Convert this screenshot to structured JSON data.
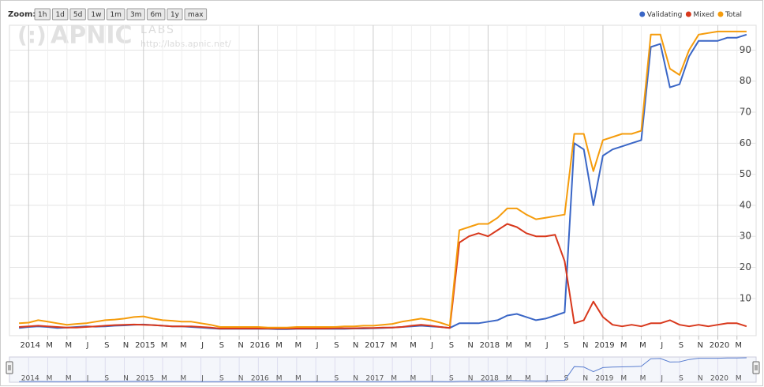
{
  "zoom": {
    "label": "Zoom:",
    "buttons": [
      "1h",
      "1d",
      "5d",
      "1w",
      "1m",
      "3m",
      "6m",
      "1y",
      "max"
    ]
  },
  "watermark": {
    "logo": "APNIC",
    "labs": "LABS",
    "url": "http://labs.apnic.net/"
  },
  "chart_data": {
    "type": "line",
    "x": [
      "2013-12",
      "2014-01",
      "2014-02",
      "2014-03",
      "2014-04",
      "2014-05",
      "2014-06",
      "2014-07",
      "2014-08",
      "2014-09",
      "2014-10",
      "2014-11",
      "2014-12",
      "2015-01",
      "2015-02",
      "2015-03",
      "2015-04",
      "2015-05",
      "2015-06",
      "2015-07",
      "2015-08",
      "2015-09",
      "2015-10",
      "2015-11",
      "2015-12",
      "2016-01",
      "2016-02",
      "2016-03",
      "2016-04",
      "2016-05",
      "2016-06",
      "2016-07",
      "2016-08",
      "2016-09",
      "2016-10",
      "2016-11",
      "2016-12",
      "2017-01",
      "2017-02",
      "2017-03",
      "2017-04",
      "2017-05",
      "2017-06",
      "2017-07",
      "2017-08",
      "2017-09",
      "2017-10",
      "2017-11",
      "2017-12",
      "2018-01",
      "2018-02",
      "2018-03",
      "2018-04",
      "2018-05",
      "2018-06",
      "2018-07",
      "2018-08",
      "2018-09",
      "2018-10",
      "2018-11",
      "2018-12",
      "2019-01",
      "2019-02",
      "2019-03",
      "2019-04",
      "2019-05",
      "2019-06",
      "2019-07",
      "2019-08",
      "2019-09",
      "2019-10",
      "2019-11",
      "2019-12",
      "2020-01",
      "2020-02",
      "2020-03",
      "2020-04"
    ],
    "series": [
      {
        "name": "Validating",
        "color": "#3a66c6",
        "values": [
          0.5,
          0.8,
          1,
          0.8,
          0.5,
          0.6,
          0.8,
          1,
          0.9,
          1,
          1.2,
          1.3,
          1.5,
          1.6,
          1.4,
          1.2,
          1,
          1,
          0.8,
          0.6,
          0.4,
          0.2,
          0.2,
          0.2,
          0.2,
          0.2,
          0.2,
          0.1,
          0.1,
          0.2,
          0.2,
          0.2,
          0.2,
          0.2,
          0.2,
          0.3,
          0.3,
          0.4,
          0.5,
          0.6,
          0.8,
          1,
          1.2,
          1,
          0.8,
          0.5,
          2,
          2,
          2,
          2.5,
          3,
          4.5,
          5,
          4,
          3,
          3.5,
          4.5,
          5.5,
          60,
          58,
          40,
          56,
          58,
          59,
          60,
          61,
          91,
          92,
          78,
          79,
          88,
          93,
          93,
          93,
          94,
          94,
          95
        ]
      },
      {
        "name": "Mixed",
        "color": "#d8381c",
        "values": [
          0.8,
          1,
          1.2,
          1,
          0.8,
          0.6,
          0.6,
          0.8,
          1,
          1.2,
          1.4,
          1.5,
          1.6,
          1.5,
          1.4,
          1.2,
          1,
          1,
          1,
          0.8,
          0.6,
          0.3,
          0.3,
          0.3,
          0.3,
          0.3,
          0.3,
          0.3,
          0.3,
          0.3,
          0.3,
          0.3,
          0.3,
          0.4,
          0.4,
          0.4,
          0.5,
          0.5,
          0.6,
          0.6,
          0.8,
          1.2,
          1.5,
          1.2,
          0.8,
          0.5,
          28,
          30,
          31,
          30,
          32,
          34,
          33,
          31,
          30,
          30,
          30.5,
          22,
          2,
          3,
          9,
          4,
          1.5,
          1,
          1.5,
          1,
          2,
          2,
          3,
          1.5,
          1,
          1.5,
          1,
          1.5,
          2,
          2,
          1
        ]
      },
      {
        "name": "Total",
        "color": "#f59c0c",
        "values": [
          2,
          2.2,
          3,
          2.5,
          2,
          1.5,
          1.8,
          2,
          2.5,
          3,
          3.2,
          3.5,
          4,
          4.2,
          3.5,
          3,
          2.8,
          2.5,
          2.5,
          2,
          1.5,
          0.8,
          0.8,
          0.8,
          0.8,
          0.8,
          0.6,
          0.6,
          0.6,
          0.8,
          0.8,
          0.8,
          0.8,
          0.8,
          1,
          1,
          1.2,
          1.2,
          1.5,
          1.8,
          2.5,
          3,
          3.5,
          3,
          2.2,
          1.2,
          32,
          33,
          34,
          34,
          36,
          39,
          39,
          37,
          35.5,
          36,
          36.5,
          37,
          63,
          63,
          51,
          61,
          62,
          63,
          63,
          64,
          95,
          95,
          84,
          82,
          90,
          95,
          95.5,
          96,
          96,
          96,
          96
        ]
      }
    ],
    "xlim": [
      "2013-11",
      "2020-05"
    ],
    "xticks": [
      {
        "value": "2014-01",
        "label": "2014"
      },
      {
        "value": "2014-03",
        "label": "M"
      },
      {
        "value": "2014-05",
        "label": "M"
      },
      {
        "value": "2014-07",
        "label": "J"
      },
      {
        "value": "2014-09",
        "label": "S"
      },
      {
        "value": "2014-11",
        "label": "N"
      },
      {
        "value": "2015-01",
        "label": "2015"
      },
      {
        "value": "2015-03",
        "label": "M"
      },
      {
        "value": "2015-05",
        "label": "M"
      },
      {
        "value": "2015-07",
        "label": "J"
      },
      {
        "value": "2015-09",
        "label": "S"
      },
      {
        "value": "2015-11",
        "label": "N"
      },
      {
        "value": "2016-01",
        "label": "2016"
      },
      {
        "value": "2016-03",
        "label": "M"
      },
      {
        "value": "2016-05",
        "label": "M"
      },
      {
        "value": "2016-07",
        "label": "J"
      },
      {
        "value": "2016-09",
        "label": "S"
      },
      {
        "value": "2016-11",
        "label": "N"
      },
      {
        "value": "2017-01",
        "label": "2017"
      },
      {
        "value": "2017-03",
        "label": "M"
      },
      {
        "value": "2017-05",
        "label": "M"
      },
      {
        "value": "2017-07",
        "label": "J"
      },
      {
        "value": "2017-09",
        "label": "S"
      },
      {
        "value": "2017-11",
        "label": "N"
      },
      {
        "value": "2018-01",
        "label": "2018"
      },
      {
        "value": "2018-03",
        "label": "M"
      },
      {
        "value": "2018-05",
        "label": "M"
      },
      {
        "value": "2018-07",
        "label": "J"
      },
      {
        "value": "2018-09",
        "label": "S"
      },
      {
        "value": "2018-11",
        "label": "N"
      },
      {
        "value": "2019-01",
        "label": "2019"
      },
      {
        "value": "2019-03",
        "label": "M"
      },
      {
        "value": "2019-05",
        "label": "M"
      },
      {
        "value": "2019-07",
        "label": "J"
      },
      {
        "value": "2019-09",
        "label": "S"
      },
      {
        "value": "2019-11",
        "label": "N"
      },
      {
        "value": "2020-01",
        "label": "2020"
      },
      {
        "value": "2020-03",
        "label": "M"
      }
    ],
    "ylim": [
      -2,
      98
    ],
    "yticks": [
      10,
      20,
      30,
      40,
      50,
      60,
      70,
      80,
      90
    ],
    "grid": true,
    "legend": "top-right"
  }
}
